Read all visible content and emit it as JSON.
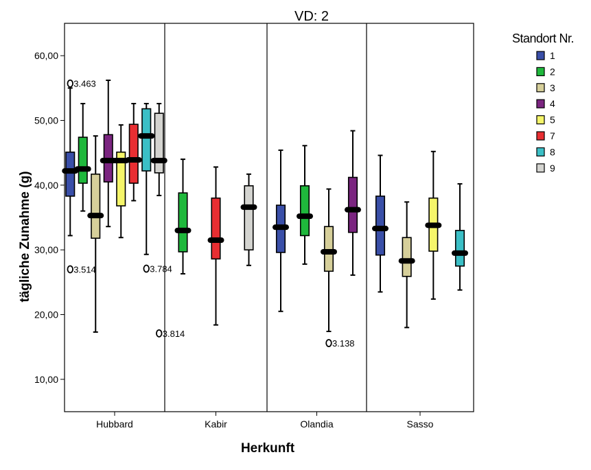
{
  "chart_data": {
    "type": "boxplot",
    "title": "VD: 2",
    "xlabel": "Herkunft",
    "ylabel": "tägliche Zunahme (g)",
    "ylim": [
      5,
      65
    ],
    "yticks": [
      "10,00",
      "20,00",
      "30,00",
      "40,00",
      "50,00",
      "60,00"
    ],
    "ytick_values": [
      10,
      20,
      30,
      40,
      50,
      60
    ],
    "categories": [
      "Hubbard",
      "Kabir",
      "Olandia",
      "Sasso"
    ],
    "legend": {
      "title": "Standort Nr.",
      "position": "right",
      "items": [
        {
          "label": "1",
          "color": "#3a4fa8"
        },
        {
          "label": "2",
          "color": "#1fb83c"
        },
        {
          "label": "3",
          "color": "#d6cf9a"
        },
        {
          "label": "4",
          "color": "#7b2580"
        },
        {
          "label": "5",
          "color": "#f5f56a"
        },
        {
          "label": "7",
          "color": "#e82e32"
        },
        {
          "label": "8",
          "color": "#3bbfc6"
        },
        {
          "label": "9",
          "color": "#d4d4d0"
        }
      ]
    },
    "groups": [
      {
        "category": "Hubbard",
        "boxes": [
          {
            "series": "1",
            "whisker_low": 32.2,
            "q1": 38.3,
            "median": 42.2,
            "q3": 45.1,
            "whisker_high": 55.0
          },
          {
            "series": "2",
            "whisker_low": 36.0,
            "q1": 40.3,
            "median": 42.5,
            "q3": 47.4,
            "whisker_high": 52.6
          },
          {
            "series": "3",
            "whisker_low": 17.3,
            "q1": 31.8,
            "median": 35.3,
            "q3": 41.7,
            "whisker_high": 47.6
          },
          {
            "series": "4",
            "whisker_low": 33.6,
            "q1": 40.5,
            "median": 43.8,
            "q3": 47.8,
            "whisker_high": 56.2
          },
          {
            "series": "5",
            "whisker_low": 31.9,
            "q1": 36.8,
            "median": 43.8,
            "q3": 45.1,
            "whisker_high": 49.3
          },
          {
            "series": "7",
            "whisker_low": 37.6,
            "q1": 40.3,
            "median": 43.9,
            "q3": 49.4,
            "whisker_high": 52.6
          },
          {
            "series": "8",
            "whisker_low": 29.3,
            "q1": 42.2,
            "median": 47.6,
            "q3": 51.8,
            "whisker_high": 52.6
          },
          {
            "series": "9",
            "whisker_low": 38.4,
            "q1": 41.9,
            "median": 43.8,
            "q3": 51.1,
            "whisker_high": 52.6
          }
        ]
      },
      {
        "category": "Kabir",
        "boxes": [
          {
            "series": "2",
            "whisker_low": 26.3,
            "q1": 29.7,
            "median": 33.0,
            "q3": 38.8,
            "whisker_high": 44.0
          },
          {
            "series": "7",
            "whisker_low": 18.4,
            "q1": 28.6,
            "median": 31.5,
            "q3": 38.0,
            "whisker_high": 42.8
          },
          {
            "series": "9",
            "whisker_low": 27.6,
            "q1": 30.0,
            "median": 36.6,
            "q3": 39.9,
            "whisker_high": 41.7
          }
        ]
      },
      {
        "category": "Olandia",
        "boxes": [
          {
            "series": "1",
            "whisker_low": 20.5,
            "q1": 29.6,
            "median": 33.5,
            "q3": 36.9,
            "whisker_high": 45.4
          },
          {
            "series": "2",
            "whisker_low": 27.8,
            "q1": 32.2,
            "median": 35.2,
            "q3": 39.9,
            "whisker_high": 46.1
          },
          {
            "series": "3",
            "whisker_low": 17.4,
            "q1": 26.7,
            "median": 29.7,
            "q3": 33.6,
            "whisker_high": 39.4
          },
          {
            "series": "4",
            "whisker_low": 26.1,
            "q1": 32.7,
            "median": 36.2,
            "q3": 41.2,
            "whisker_high": 48.4
          }
        ]
      },
      {
        "category": "Sasso",
        "boxes": [
          {
            "series": "1",
            "whisker_low": 23.5,
            "q1": 29.2,
            "median": 33.3,
            "q3": 38.3,
            "whisker_high": 44.6
          },
          {
            "series": "3",
            "whisker_low": 18.0,
            "q1": 25.9,
            "median": 28.3,
            "q3": 31.9,
            "whisker_high": 37.4
          },
          {
            "series": "5",
            "whisker_low": 22.4,
            "q1": 29.8,
            "median": 33.8,
            "q3": 38.0,
            "whisker_high": 45.2
          },
          {
            "series": "8",
            "whisker_low": 23.8,
            "q1": 27.5,
            "median": 29.5,
            "q3": 33.0,
            "whisker_high": 40.2
          }
        ]
      }
    ],
    "outliers": [
      {
        "category": "Hubbard",
        "series": "1",
        "value": 55.7,
        "label": "3.463"
      },
      {
        "category": "Hubbard",
        "series": "1",
        "value": 27.0,
        "label": "3.514"
      },
      {
        "category": "Hubbard",
        "series": "8",
        "value": 27.1,
        "label": "3.784"
      },
      {
        "category": "Hubbard",
        "series": "9",
        "value": 17.1,
        "label": "3.814"
      },
      {
        "category": "Olandia",
        "series": "3",
        "value": 15.6,
        "label": "3.138"
      }
    ]
  }
}
